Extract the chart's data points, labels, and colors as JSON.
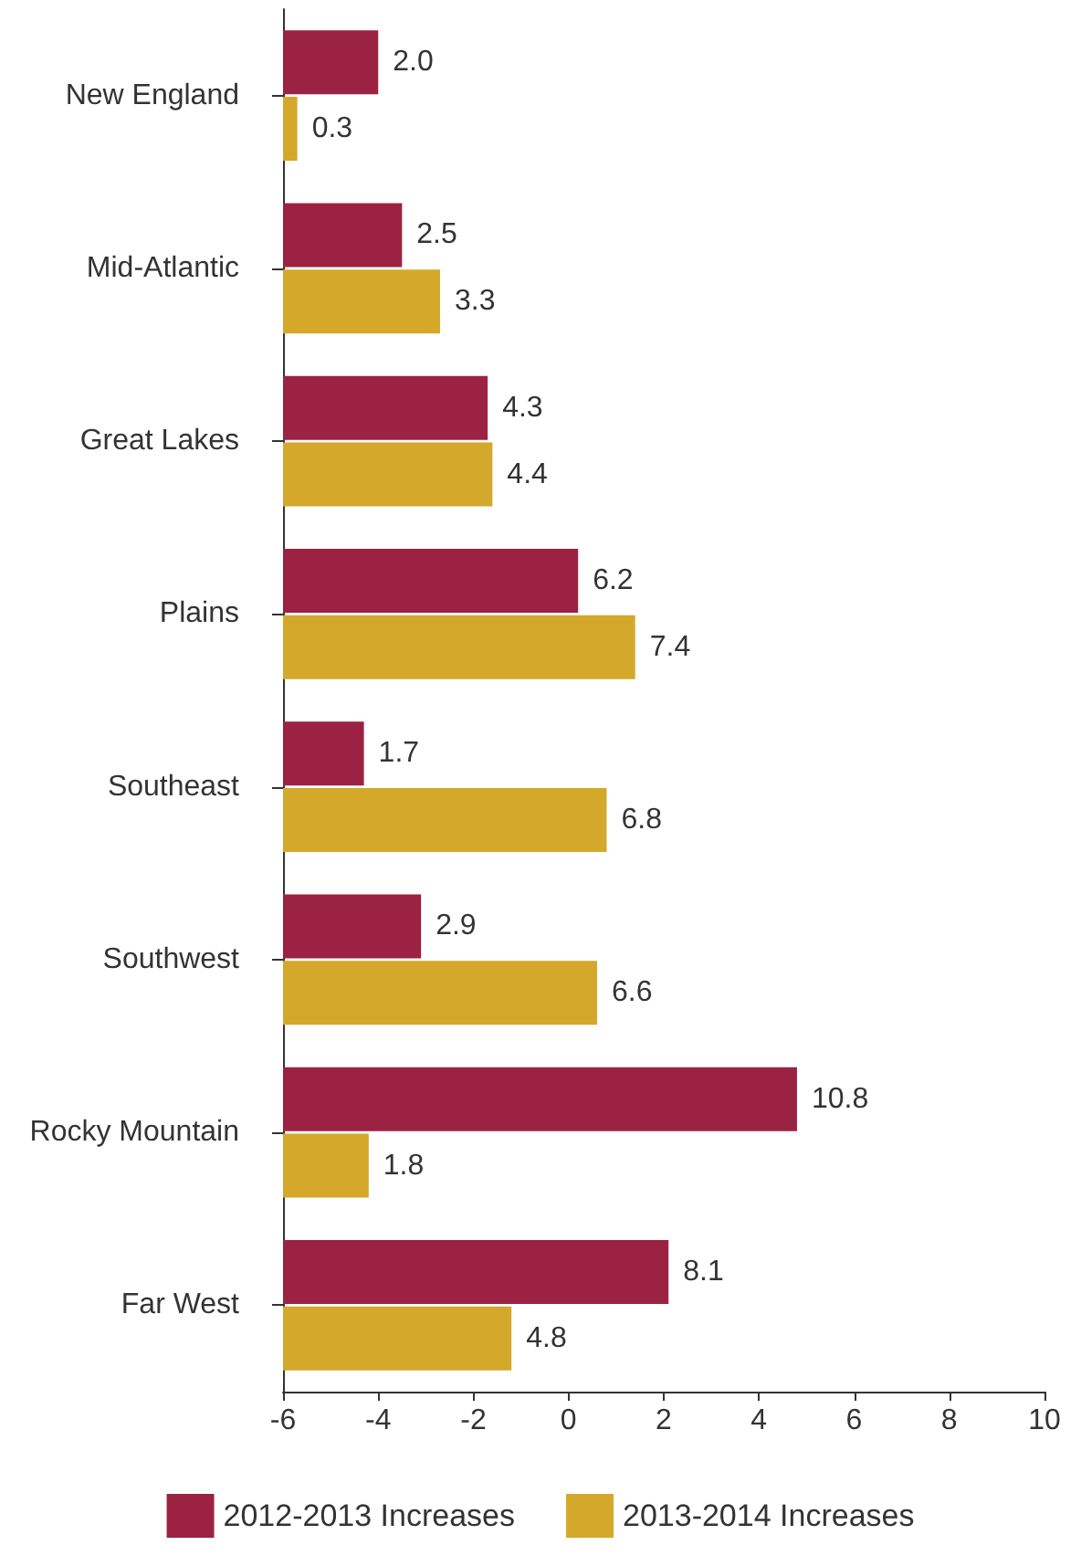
{
  "chart_data": {
    "type": "bar",
    "orientation": "horizontal",
    "categories": [
      "New England",
      "Mid-Atlantic",
      "Great Lakes",
      "Plains",
      "Southeast",
      "Southwest",
      "Rocky Mountain",
      "Far West"
    ],
    "series": [
      {
        "name": "2012-2013 Increases",
        "color": "#9b2242",
        "values": [
          2.0,
          2.5,
          4.3,
          6.2,
          1.7,
          2.9,
          10.8,
          8.1
        ],
        "base": [
          -6,
          -6,
          -6,
          -6,
          -6,
          -6,
          -6,
          -6
        ],
        "value_labels": [
          "2.0",
          "2.5",
          "4.3",
          "6.2",
          "1.7",
          "2.9",
          "10.8",
          "8.1"
        ]
      },
      {
        "name": "2013-2014 Increases",
        "color": "#d4a82a",
        "values": [
          0.3,
          3.3,
          4.4,
          7.4,
          6.8,
          6.6,
          1.8,
          4.8
        ],
        "base": [
          -6,
          -6,
          -6,
          -6,
          -6,
          -6,
          -6,
          -6
        ],
        "value_labels": [
          "0.3",
          "3.3",
          "4.4",
          "7.4",
          "6.8",
          "6.6",
          "1.8",
          "4.8"
        ]
      }
    ],
    "xlim": [
      -6,
      10
    ],
    "xticks": [
      -6,
      -4,
      -2,
      0,
      2,
      4,
      6,
      8,
      10
    ],
    "grid": false,
    "legend": "bottom"
  }
}
